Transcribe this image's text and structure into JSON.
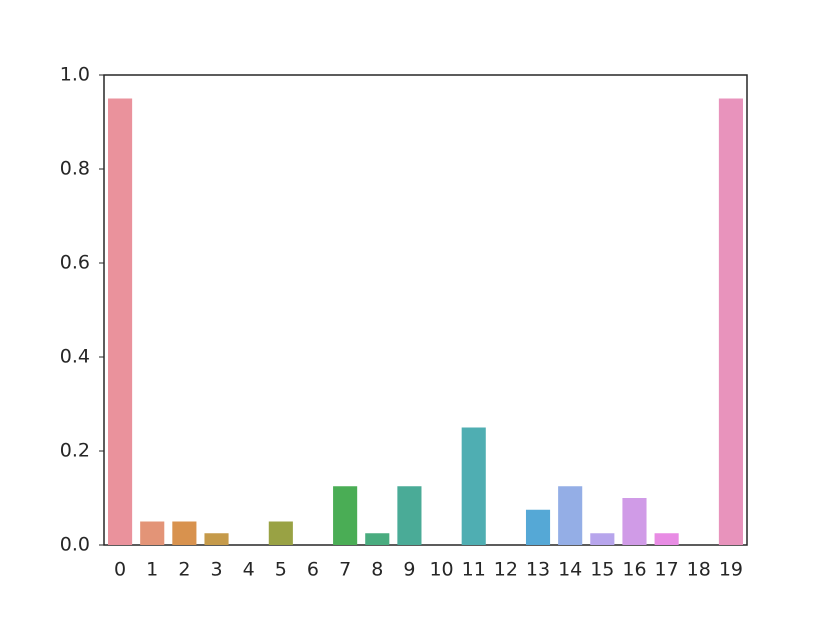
{
  "chart_data": {
    "type": "bar",
    "categories": [
      "0",
      "1",
      "2",
      "3",
      "4",
      "5",
      "6",
      "7",
      "8",
      "9",
      "10",
      "11",
      "12",
      "13",
      "14",
      "15",
      "16",
      "17",
      "18",
      "19"
    ],
    "values": [
      0.95,
      0.05,
      0.05,
      0.025,
      0,
      0.05,
      0,
      0.125,
      0.025,
      0.125,
      0,
      0.25,
      0,
      0.075,
      0.125,
      0.025,
      0.1,
      0.025,
      0,
      0.95
    ],
    "colors": [
      "#ea929c",
      "#e39477",
      "#d8924e",
      "#c59a4a",
      "#b0a048",
      "#99a244",
      "#6fa943",
      "#4aad55",
      "#49ac7f",
      "#4aab97",
      "#4caaa6",
      "#4faeb2",
      "#52adc2",
      "#55a8d6",
      "#94aee6",
      "#b7a5ec",
      "#d09be7",
      "#e88ce4",
      "#e78dcc",
      "#e893bc"
    ],
    "ylim": [
      0,
      1
    ],
    "yticks": [
      {
        "value": 0,
        "label": "0.0"
      },
      0.2,
      0.4,
      0.6,
      0.8,
      {
        "value": 1,
        "label": "1.0"
      }
    ],
    "grid": false
  }
}
